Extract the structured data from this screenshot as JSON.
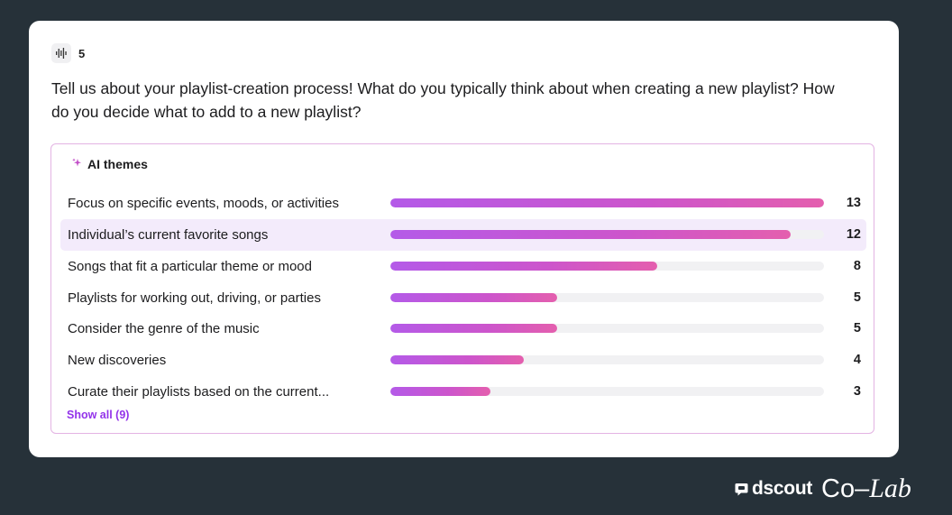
{
  "question": {
    "number": "5",
    "text": "Tell us about your playlist-creation process! What do you typically think about when creating a new playlist? How do you decide what to add to a new playlist?"
  },
  "themes": {
    "title": "AI themes",
    "max_count": 13,
    "items": [
      {
        "label": "Focus on specific events, moods, or activities",
        "count": 13,
        "fill": 1.0
      },
      {
        "label": "Individual’s current favorite songs",
        "count": 12,
        "fill": 0.923,
        "highlighted": true
      },
      {
        "label": "Songs that fit a particular theme or mood",
        "count": 8,
        "fill": 0.615
      },
      {
        "label": "Playlists for working out, driving, or parties",
        "count": 5,
        "fill": 0.385
      },
      {
        "label": "Consider the genre of the music",
        "count": 5,
        "fill": 0.385
      },
      {
        "label": "New discoveries",
        "count": 4,
        "fill": 0.308
      },
      {
        "label": "Curate their playlists based on the current...",
        "count": 3,
        "fill": 0.231
      }
    ],
    "show_all_label": "Show all (9)"
  },
  "branding": {
    "dscout": "dscout",
    "co": "Co–",
    "lab": "Lab"
  },
  "colors": {
    "background": "#263139",
    "bar_start": "#b45ae8",
    "bar_end": "#e45fae",
    "accent": "#9333ea",
    "highlight_row": "#f3ebfb",
    "panel_border": "#e3b3e3"
  },
  "icons": {
    "question_type": "audio-waveform-icon",
    "themes": "sparkle-icon",
    "brand": "chat-bubble-icon"
  }
}
